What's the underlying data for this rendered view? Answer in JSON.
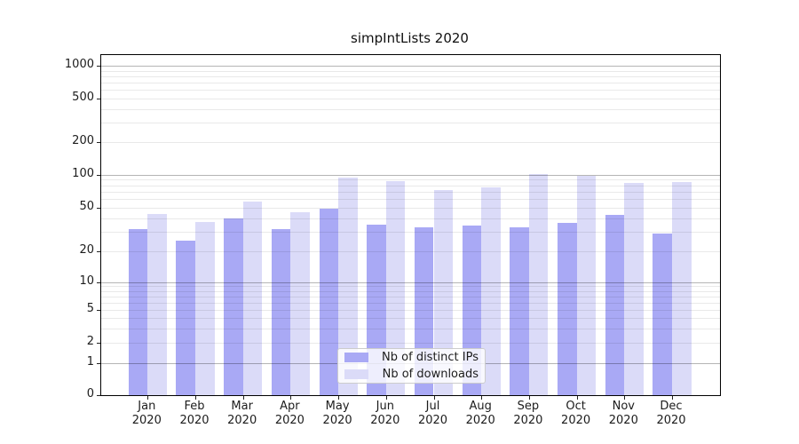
{
  "title": "simpIntLists 2020",
  "chart_data": {
    "type": "bar",
    "title": "simpIntLists 2020",
    "categories": [
      "Jan 2020",
      "Feb 2020",
      "Mar 2020",
      "Apr 2020",
      "May 2020",
      "Jun 2020",
      "Jul 2020",
      "Aug 2020",
      "Sep 2020",
      "Oct 2020",
      "Nov 2020",
      "Dec 2020"
    ],
    "x_tick_months": [
      "Jan",
      "Feb",
      "Mar",
      "Apr",
      "May",
      "Jun",
      "Jul",
      "Aug",
      "Sep",
      "Oct",
      "Nov",
      "Dec"
    ],
    "x_tick_year": "2020",
    "series": [
      {
        "name": "Nb of distinct IPs",
        "color": "#a9a9f5",
        "values": [
          32,
          25,
          40,
          32,
          49,
          35,
          33,
          34,
          33,
          36,
          43,
          29
        ]
      },
      {
        "name": "Nb of downloads",
        "color": "#dbdbf8",
        "values": [
          44,
          37,
          57,
          45,
          94,
          87,
          73,
          76,
          102,
          98,
          84,
          86
        ]
      }
    ],
    "y_axis": {
      "scale": "asinh-like (logarithmic above 1, linear 0-1)",
      "ticks": [
        0,
        1,
        2,
        5,
        10,
        20,
        50,
        100,
        200,
        500,
        1000
      ],
      "ylim": [
        0,
        1260
      ]
    },
    "grid": {
      "major_values": [
        1,
        10,
        100,
        1000
      ],
      "minor_values": [
        2,
        3,
        4,
        5,
        6,
        7,
        8,
        9,
        20,
        30,
        40,
        50,
        60,
        70,
        80,
        90,
        200,
        300,
        400,
        500,
        600,
        700,
        800,
        900
      ]
    },
    "legend": {
      "position": "lower center, inside plot",
      "entries": [
        "Nb of distinct IPs",
        "Nb of downloads"
      ]
    },
    "xlabel": "",
    "ylabel": ""
  },
  "colors": {
    "distinct_ips_bar": "#a9a9f5",
    "downloads_bar": "#dbdbf8",
    "background": "#ffffff"
  }
}
